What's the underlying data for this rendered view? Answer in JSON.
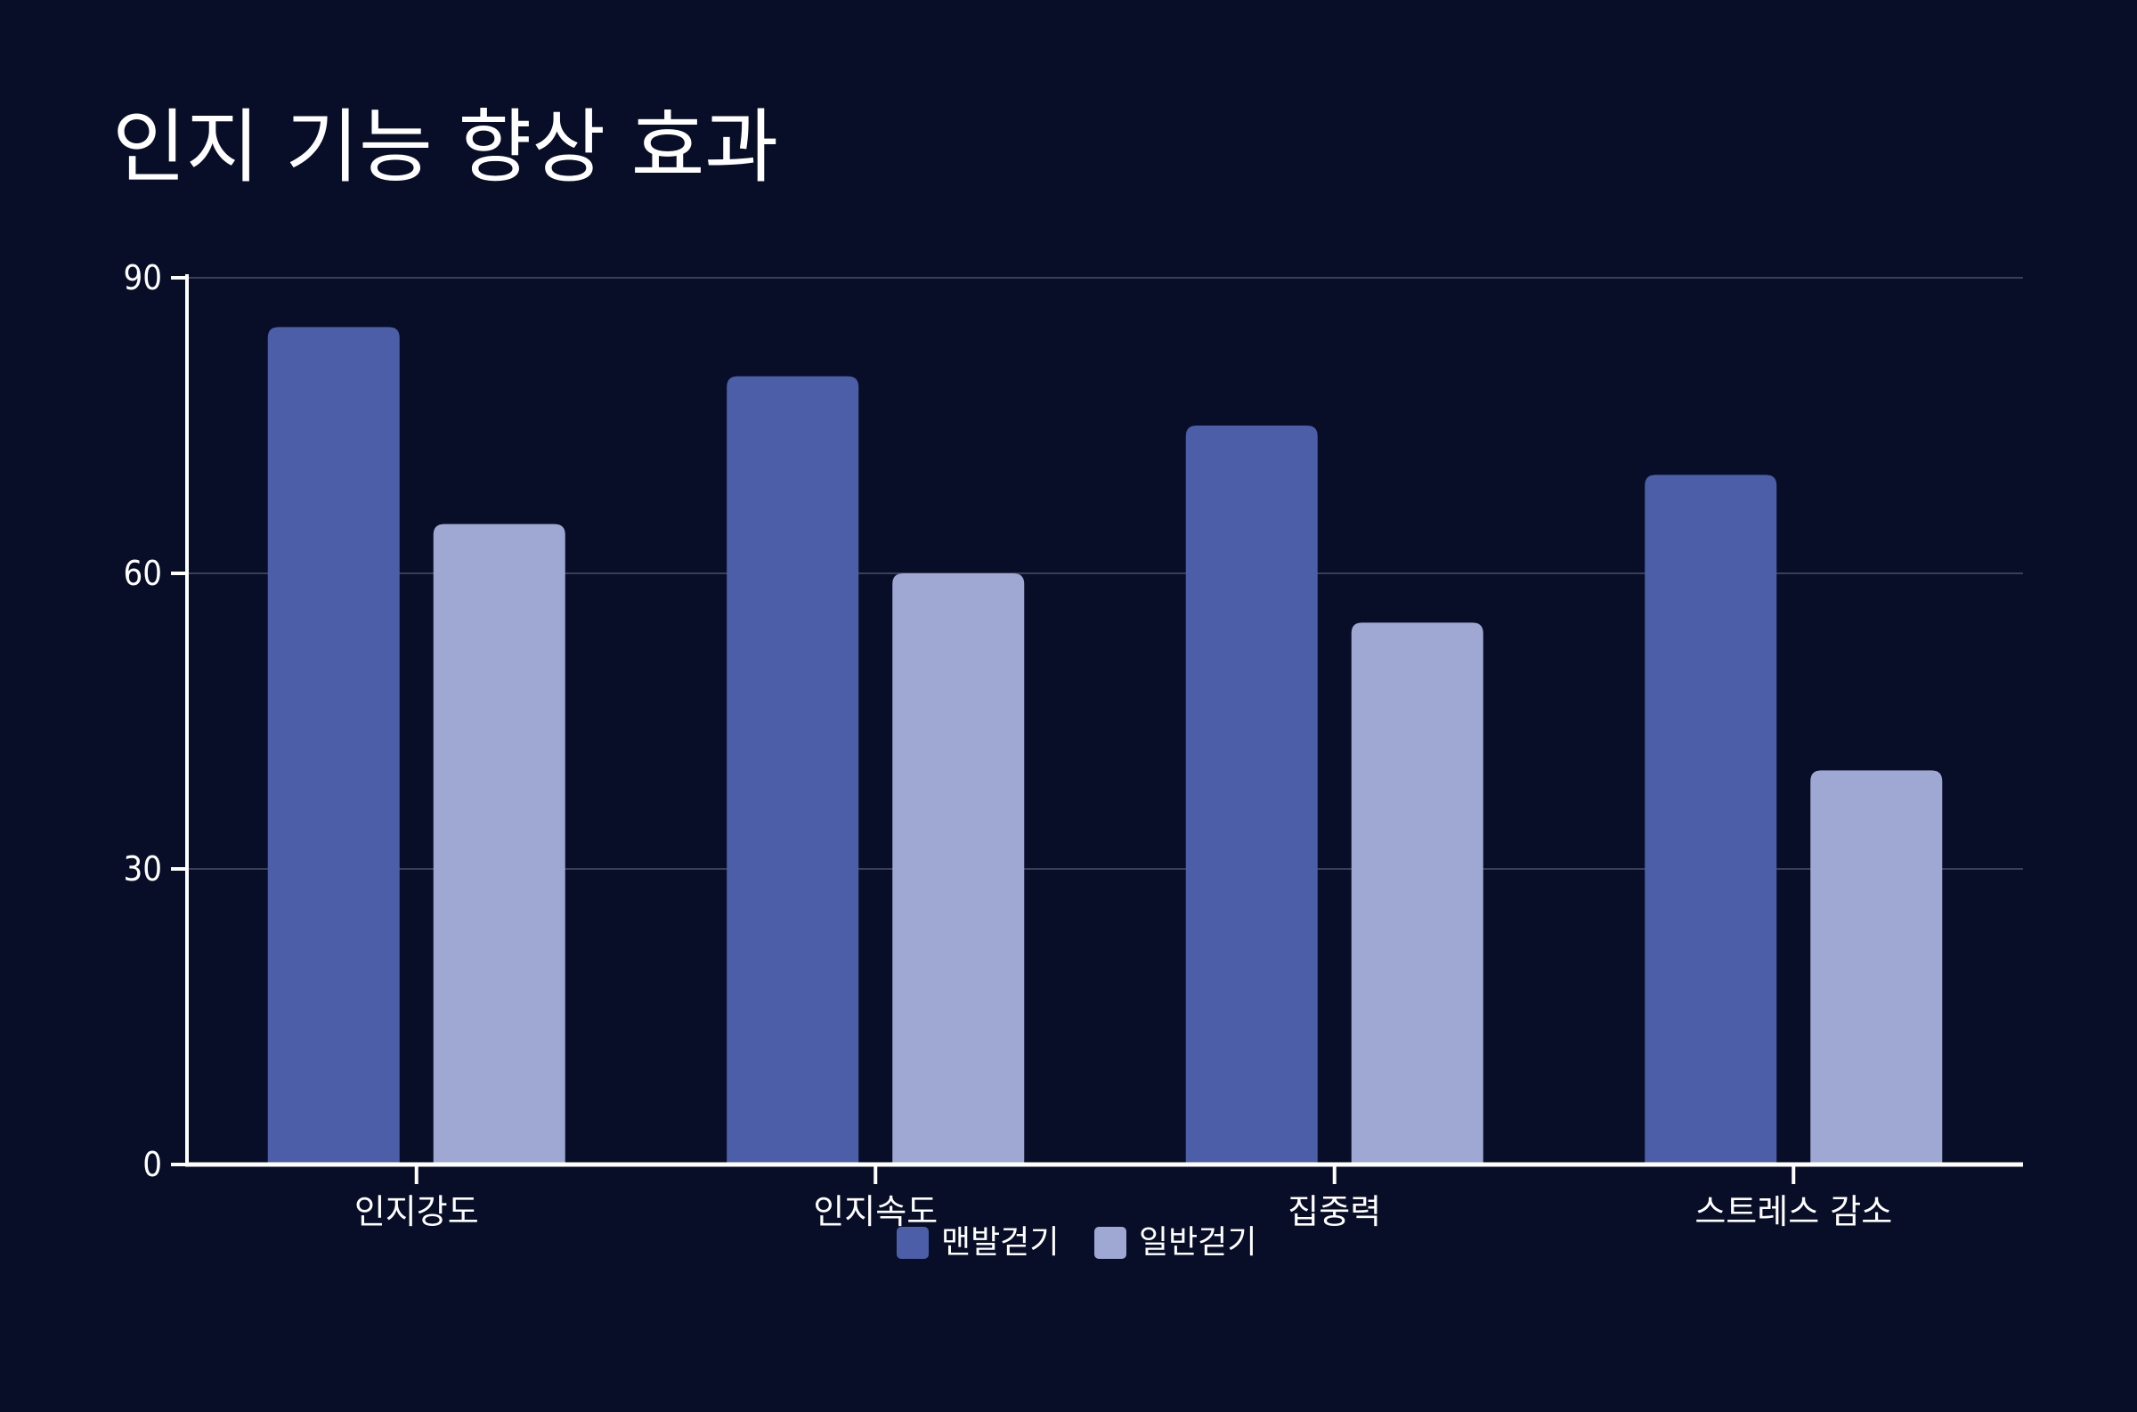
{
  "chart_data": {
    "type": "bar",
    "title": "인지 기능 향상 효과",
    "categories": [
      "인지강도",
      "인지속도",
      "집중력",
      "스트레스 감소"
    ],
    "series": [
      {
        "name": "맨발걷기",
        "values": [
          85,
          80,
          75,
          70
        ],
        "color": "#4c5ea8"
      },
      {
        "name": "일반걷기",
        "values": [
          65,
          60,
          55,
          40
        ],
        "color": "#9ea8d3"
      }
    ],
    "xlabel": "",
    "ylabel": "",
    "ylim": [
      0,
      90
    ],
    "yticks": [
      0,
      30,
      60,
      90
    ],
    "grid": true,
    "legend_position": "bottom-center",
    "colors": {
      "background": "#080e27",
      "axis": "#ffffff",
      "grid": "#3a3f57"
    }
  }
}
